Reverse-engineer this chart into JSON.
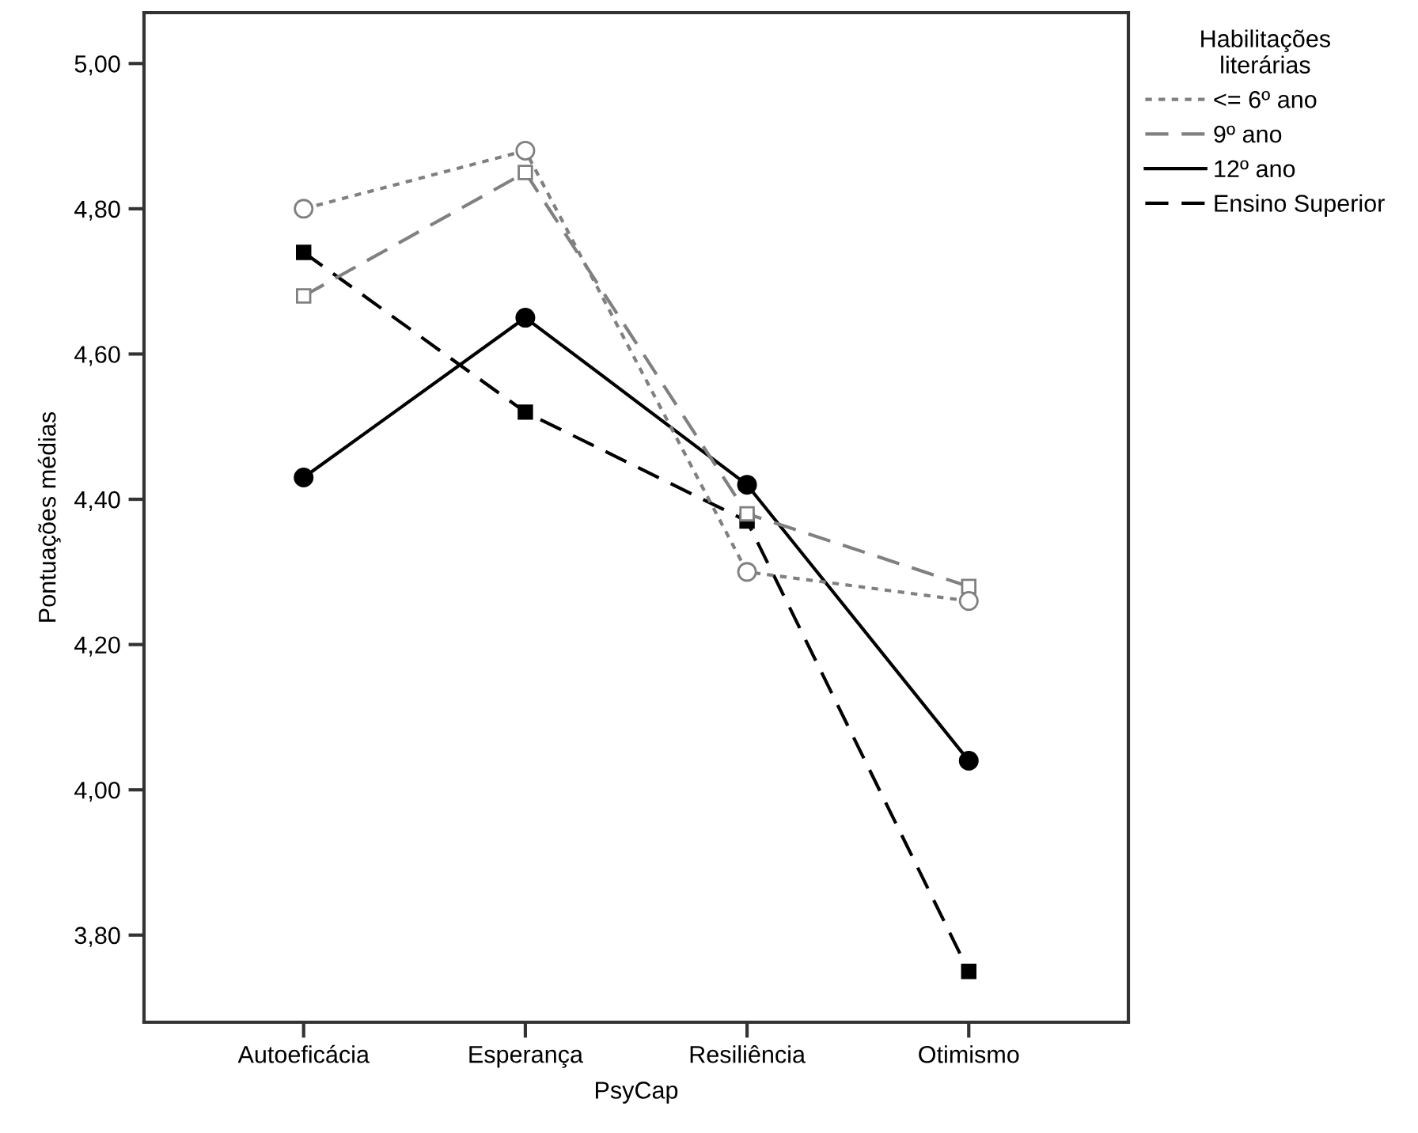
{
  "chart_data": {
    "type": "line",
    "xlabel": "PsyCap",
    "ylabel": "Pontuações médias",
    "legend_title": "Habilitações\nliterárias",
    "categories": [
      "Autoeficácia",
      "Esperança",
      "Resiliência",
      "Otimismo"
    ],
    "series": [
      {
        "name": "<= 6º ano",
        "color": "#808080",
        "values": [
          4.8,
          4.88,
          4.3,
          4.26
        ],
        "marker": "circle",
        "line_style": "dotted"
      },
      {
        "name": "9º ano",
        "color": "#808080",
        "values": [
          4.68,
          4.85,
          4.38,
          4.28
        ],
        "marker": "square",
        "line_style": "dashed"
      },
      {
        "name": "12º ano",
        "color": "#000000",
        "values": [
          4.43,
          4.65,
          4.42,
          4.04
        ],
        "marker": "circle",
        "line_style": "solid"
      },
      {
        "name": "Ensino Superior",
        "color": "#000000",
        "values": [
          4.74,
          4.52,
          4.37,
          3.75
        ],
        "marker": "square",
        "line_style": "dashed"
      }
    ],
    "ylim": [
      3.68,
      5.07
    ],
    "yticks": [
      {
        "value": 3.8,
        "label": "3,80"
      },
      {
        "value": 4.0,
        "label": "4,00"
      },
      {
        "value": 4.2,
        "label": "4,20"
      },
      {
        "value": 4.4,
        "label": "4,40"
      },
      {
        "value": 4.6,
        "label": "4,60"
      },
      {
        "value": 4.8,
        "label": "4,80"
      },
      {
        "value": 5.0,
        "label": "5,00"
      }
    ],
    "grid": false,
    "legend": "right"
  }
}
